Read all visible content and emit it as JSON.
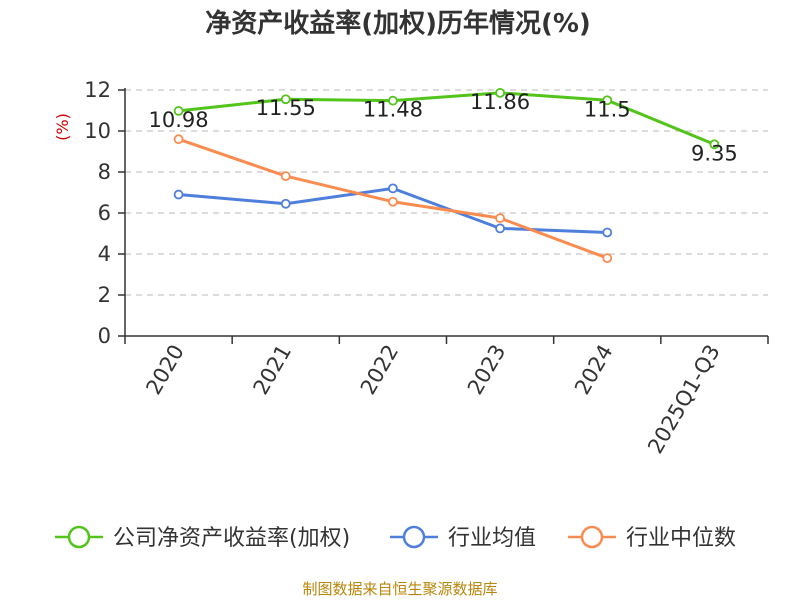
{
  "chart_data": {
    "type": "line",
    "title": "净资产收益率(加权)历年情况(%)",
    "ylabel": "(%)",
    "xlabel": "",
    "categories": [
      "2020",
      "2021",
      "2022",
      "2023",
      "2024",
      "2025Q1-Q3"
    ],
    "ylim": [
      0,
      12
    ],
    "yticks": [
      0,
      2,
      4,
      6,
      8,
      10,
      12
    ],
    "grid": true,
    "legend_position": "bottom",
    "series": [
      {
        "name": "公司净资产收益率(加权)",
        "color": "#52c41a",
        "show_labels": true,
        "values": [
          10.98,
          11.55,
          11.48,
          11.86,
          11.5,
          9.35
        ]
      },
      {
        "name": "行业均值",
        "color": "#4f7fdc",
        "show_labels": false,
        "values": [
          6.9,
          6.45,
          7.2,
          5.25,
          5.05,
          null
        ]
      },
      {
        "name": "行业中位数",
        "color": "#fa8c50",
        "show_labels": false,
        "values": [
          9.6,
          7.8,
          6.55,
          5.75,
          3.8,
          null
        ]
      }
    ],
    "data_labels": [
      "10.98",
      "11.55",
      "11.48",
      "11.86",
      "11.5",
      "9.35"
    ]
  },
  "source": "制图数据来自恒生聚源数据库"
}
